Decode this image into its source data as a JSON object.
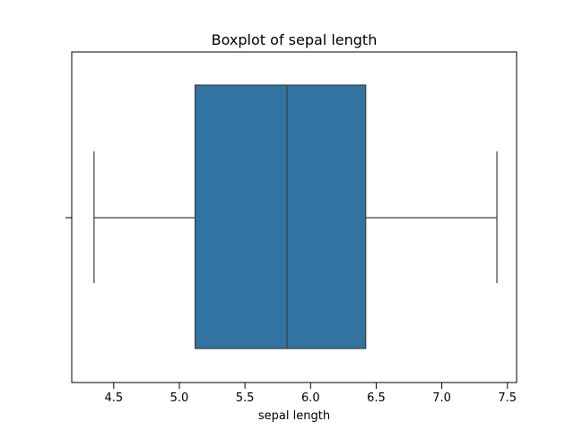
{
  "chart_data": {
    "type": "box",
    "title": "Boxplot of sepal length",
    "xlabel": "sepal length",
    "ylabel": "",
    "xlim": [
      4.18,
      7.57
    ],
    "xticks": [
      "4.5",
      "5.0",
      "5.5",
      "6.0",
      "6.5",
      "7.0",
      "7.5"
    ],
    "orientation": "horizontal",
    "grid": false,
    "legend": "none",
    "box": {
      "whisker_low": 4.35,
      "q1": 5.12,
      "median": 5.82,
      "q3": 6.42,
      "whisker_high": 7.42
    },
    "colors": {
      "box_fill": "#3274a1",
      "line": "#3d3d3d",
      "axes": "#000000"
    }
  }
}
